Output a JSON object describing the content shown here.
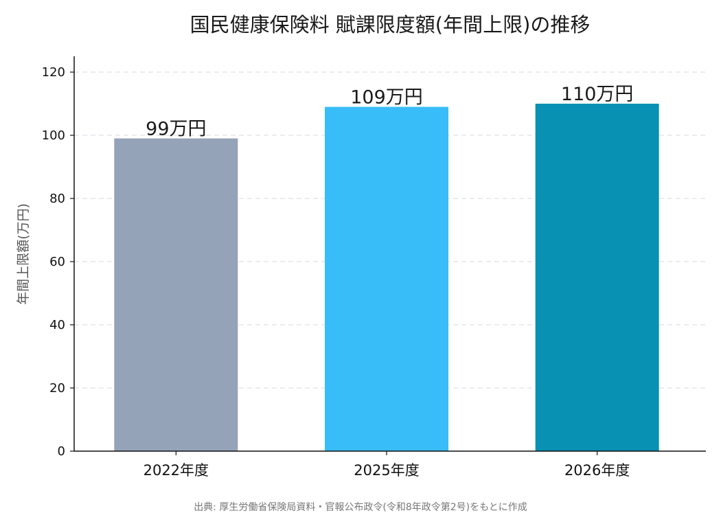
{
  "chart_data": {
    "type": "bar",
    "title": "国民健康保険料 賦課限度額(年間上限)の推移",
    "xlabel": "",
    "ylabel": "年間上限額(万円)",
    "categories": [
      "2022年度",
      "2025年度",
      "2026年度"
    ],
    "values": [
      99,
      109,
      110
    ],
    "value_labels": [
      "99万円",
      "109万円",
      "110万円"
    ],
    "colors": [
      "#94a3b8",
      "#38bdf8",
      "#0891b2"
    ],
    "ylim": [
      0,
      125
    ],
    "yticks": [
      0,
      20,
      40,
      60,
      80,
      100,
      120
    ],
    "grid": "y-dashed",
    "legend": "none"
  },
  "source_note": "出典: 厚生労働省保険局資料・官報公布政令(令和8年政令第2号)をもとに作成"
}
